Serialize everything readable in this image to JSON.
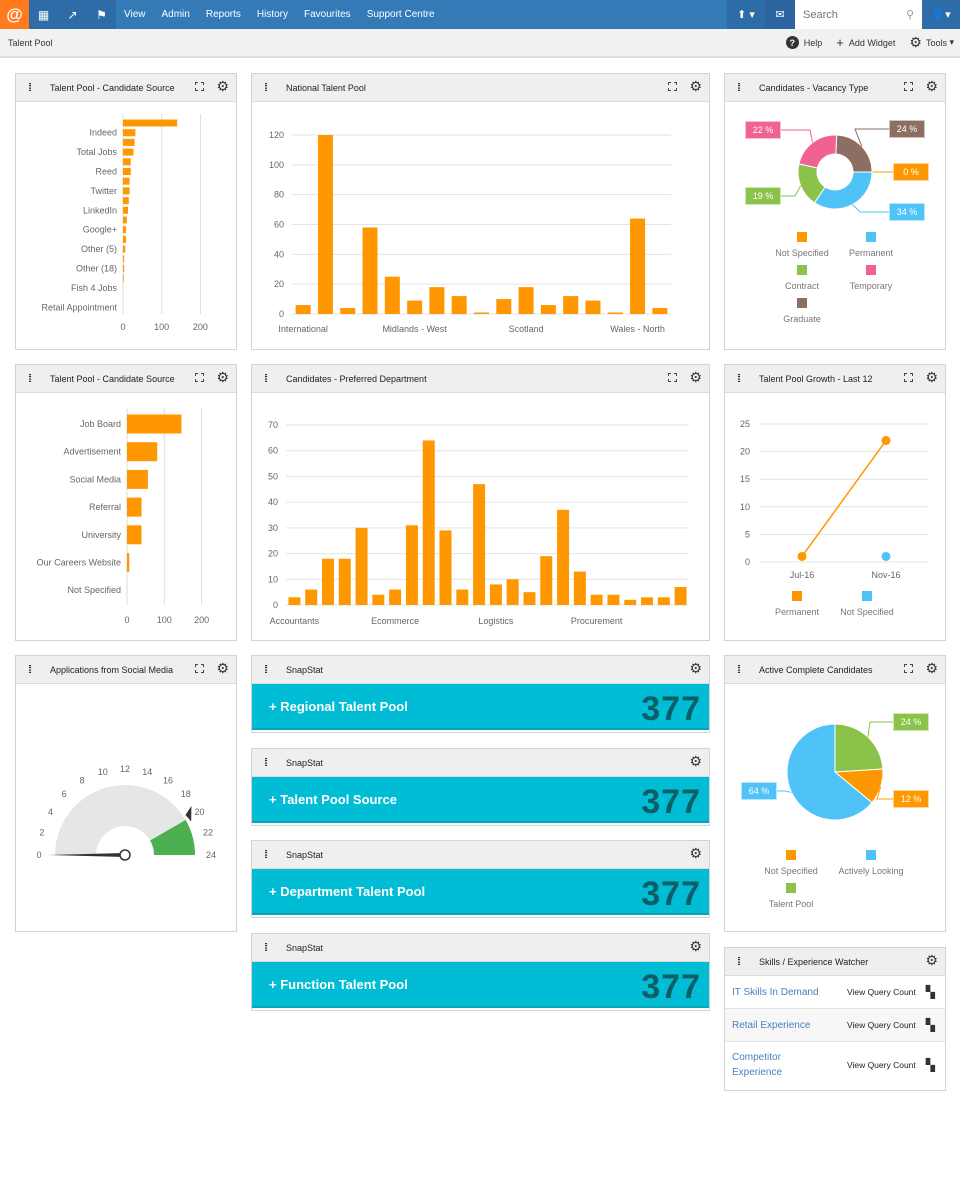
{
  "nav": {
    "logo": "@",
    "menu": [
      "View",
      "Admin",
      "Reports",
      "History",
      "Favourites",
      "Support Centre"
    ],
    "search_placeholder": "Search",
    "icons": [
      "dashboard-icon",
      "trend-icon",
      "flag-icon",
      "upload-icon",
      "mail-icon",
      "search-icon",
      "user-icon"
    ]
  },
  "subbar": {
    "breadcrumb": "Talent Pool",
    "help": "Help",
    "add_widget": "Add Widget",
    "tools": "Tools"
  },
  "colors": {
    "accent": "#ff9800",
    "nav": "#337ab7",
    "snap": "#00bcd4",
    "snap_number": "#0b5e66"
  },
  "widgets": {
    "source1": {
      "title": "Talent Pool - Candidate Source"
    },
    "national": {
      "title": "National Talent Pool"
    },
    "vacancy": {
      "title": "Candidates - Vacancy Type"
    },
    "source2": {
      "title": "Talent Pool - Candidate Source"
    },
    "department": {
      "title": "Candidates - Preferred Department"
    },
    "growth": {
      "title": "Talent Pool Growth - Last 12"
    },
    "social": {
      "title": "Applications from Social Media"
    },
    "active": {
      "title": "Active Complete Candidates"
    },
    "skills": {
      "title": "Skills / Experience Watcher",
      "rows": [
        {
          "name": "IT Skills In Demand",
          "action": "View Query Count"
        },
        {
          "name": "Retail Experience",
          "action": "View Query Count"
        },
        {
          "name": "Competitor Experience",
          "action": "View Query Count"
        }
      ]
    }
  },
  "snapstats": [
    {
      "header": "SnapStat",
      "title": "Regional Talent Pool",
      "value": "377"
    },
    {
      "header": "SnapStat",
      "title": "Talent Pool Source",
      "value": "377"
    },
    {
      "header": "SnapStat",
      "title": "Department Talent Pool",
      "value": "377"
    },
    {
      "header": "SnapStat",
      "title": "Function Talent Pool",
      "value": "377"
    }
  ],
  "chart_data": [
    {
      "id": "source1",
      "type": "bar",
      "orientation": "horizontal",
      "categories": [
        "",
        "Indeed",
        "",
        "Total Jobs",
        "",
        "Reed",
        "",
        "Twitter",
        "",
        "LinkedIn",
        "",
        "Google+",
        "",
        "Other (5)",
        "",
        "Other (18)",
        "",
        "Fish 4 Jobs",
        "",
        "Retail Appointment"
      ],
      "values": [
        140,
        32,
        30,
        27,
        20,
        20,
        17,
        17,
        15,
        13,
        10,
        8,
        8,
        6,
        3,
        3,
        2,
        0,
        0,
        0
      ],
      "xlim": [
        0,
        200
      ],
      "xticks": [
        0,
        100,
        200
      ],
      "color": "#ff9800",
      "grid": true
    },
    {
      "id": "national",
      "type": "bar",
      "categories": [
        "International",
        "",
        "",
        "",
        "",
        "Midlands - West",
        "",
        "",
        "",
        "",
        "Scotland",
        "",
        "",
        "",
        "",
        "Wales - North",
        ""
      ],
      "values": [
        6,
        120,
        4,
        58,
        25,
        9,
        18,
        12,
        1,
        10,
        18,
        6,
        12,
        9,
        1,
        64,
        4
      ],
      "ylim": [
        0,
        120
      ],
      "yticks": [
        0,
        20,
        40,
        60,
        80,
        100,
        120
      ],
      "color": "#ff9800",
      "grid": true
    },
    {
      "id": "vacancy",
      "type": "pie",
      "donut": true,
      "slices": [
        {
          "label": "Not Specified",
          "value": 0,
          "color": "#ff9800"
        },
        {
          "label": "Permanent",
          "value": 34,
          "color": "#4fc3f7"
        },
        {
          "label": "Contract",
          "value": 19,
          "color": "#8bc34a"
        },
        {
          "label": "Temporary",
          "value": 22,
          "color": "#f06292"
        },
        {
          "label": "Graduate",
          "value": 24,
          "color": "#8d6e63"
        }
      ],
      "legend": "bottom"
    },
    {
      "id": "source2",
      "type": "bar",
      "orientation": "horizontal",
      "categories": [
        "Job Board",
        "Advertisement",
        "Social Media",
        "Referral",
        "University",
        "Our Careers Website",
        "Not Specified"
      ],
      "values": [
        146,
        81,
        56,
        39,
        39,
        6,
        0
      ],
      "xlim": [
        0,
        200
      ],
      "xticks": [
        0,
        100,
        200
      ],
      "color": "#ff9800",
      "grid": true
    },
    {
      "id": "department",
      "type": "bar",
      "categories": [
        "Accountants",
        "",
        "",
        "",
        "",
        "",
        "Ecommerce",
        "",
        "",
        "",
        "",
        "",
        "Logistics",
        "",
        "",
        "",
        "",
        "",
        "Procurement",
        "",
        "",
        "",
        "",
        ""
      ],
      "values": [
        3,
        6,
        18,
        18,
        30,
        4,
        6,
        31,
        64,
        29,
        6,
        47,
        8,
        10,
        5,
        19,
        37,
        13,
        4,
        4,
        2,
        3,
        3,
        7
      ],
      "ylim": [
        0,
        70
      ],
      "yticks": [
        0,
        10,
        20,
        30,
        40,
        50,
        60,
        70
      ],
      "color": "#ff9800",
      "grid": true
    },
    {
      "id": "growth",
      "type": "line",
      "x": [
        "Jul-16",
        "Nov-16"
      ],
      "series": [
        {
          "name": "Permanent",
          "values": [
            1,
            22
          ],
          "color": "#ff9800"
        },
        {
          "name": "Not Specified",
          "values": [
            null,
            1
          ],
          "color": "#4fc3f7"
        }
      ],
      "ylim": [
        0,
        25
      ],
      "yticks": [
        0,
        5,
        10,
        15,
        20,
        25
      ],
      "legend": "bottom",
      "grid": true
    },
    {
      "id": "social",
      "type": "gauge",
      "min": 0,
      "max": 24,
      "value": 0,
      "ticks": [
        0,
        2,
        4,
        6,
        8,
        10,
        12,
        14,
        16,
        18,
        20,
        22,
        24
      ],
      "bands": [
        {
          "from": 20,
          "to": 24,
          "color": "#4caf50"
        }
      ],
      "marker": 19.5
    },
    {
      "id": "active",
      "type": "pie",
      "slices": [
        {
          "label": "Not Specified",
          "value": 12,
          "color": "#ff9800"
        },
        {
          "label": "Actively Looking",
          "value": 64,
          "color": "#4fc3f7"
        },
        {
          "label": "Talent Pool",
          "value": 24,
          "color": "#8bc34a"
        }
      ],
      "legend": "bottom"
    }
  ]
}
